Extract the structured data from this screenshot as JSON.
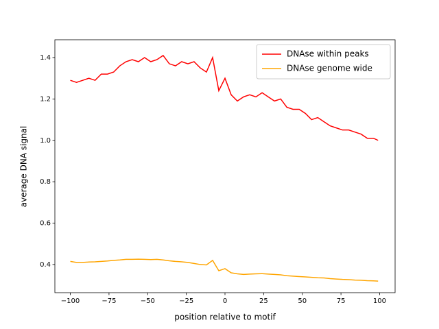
{
  "chart_data": {
    "type": "line",
    "xlabel": "position relative to motif",
    "ylabel": "average DNA signal",
    "x": [
      -100,
      -96,
      -92,
      -88,
      -84,
      -80,
      -76,
      -72,
      -68,
      -64,
      -60,
      -56,
      -52,
      -48,
      -44,
      -40,
      -36,
      -32,
      -28,
      -24,
      -20,
      -16,
      -12,
      -8,
      -4,
      0,
      4,
      8,
      12,
      16,
      20,
      24,
      28,
      32,
      36,
      40,
      44,
      48,
      52,
      56,
      60,
      64,
      68,
      72,
      76,
      80,
      84,
      88,
      92,
      96,
      99
    ],
    "series": [
      {
        "name": "DNAse within peaks",
        "color": "#ff0000",
        "values": [
          1.29,
          1.28,
          1.29,
          1.3,
          1.29,
          1.32,
          1.32,
          1.33,
          1.36,
          1.38,
          1.39,
          1.38,
          1.4,
          1.38,
          1.39,
          1.41,
          1.37,
          1.36,
          1.38,
          1.37,
          1.38,
          1.35,
          1.33,
          1.4,
          1.24,
          1.3,
          1.22,
          1.19,
          1.21,
          1.22,
          1.21,
          1.23,
          1.21,
          1.19,
          1.2,
          1.16,
          1.15,
          1.15,
          1.13,
          1.1,
          1.11,
          1.09,
          1.07,
          1.06,
          1.05,
          1.05,
          1.04,
          1.03,
          1.01,
          1.01,
          1.0
        ]
      },
      {
        "name": "DNAse genome wide",
        "color": "#ffa500",
        "values": [
          0.415,
          0.41,
          0.41,
          0.412,
          0.413,
          0.415,
          0.417,
          0.42,
          0.422,
          0.425,
          0.425,
          0.426,
          0.425,
          0.424,
          0.425,
          0.422,
          0.418,
          0.415,
          0.413,
          0.41,
          0.405,
          0.4,
          0.398,
          0.42,
          0.37,
          0.38,
          0.36,
          0.355,
          0.352,
          0.354,
          0.355,
          0.356,
          0.354,
          0.352,
          0.35,
          0.346,
          0.344,
          0.342,
          0.34,
          0.338,
          0.336,
          0.335,
          0.332,
          0.33,
          0.328,
          0.327,
          0.325,
          0.324,
          0.322,
          0.321,
          0.32
        ]
      }
    ],
    "xlim": [
      -110,
      110
    ],
    "ylim": [
      0.264,
      1.486
    ],
    "xticks": [
      {
        "value": -100,
        "label": "−100"
      },
      {
        "value": -75,
        "label": "−75"
      },
      {
        "value": -50,
        "label": "−50"
      },
      {
        "value": -25,
        "label": "−25"
      },
      0,
      25,
      50,
      75,
      100
    ],
    "yticks": [
      {
        "value": 0.4,
        "label": "0.4"
      },
      {
        "value": 0.6,
        "label": "0.6"
      },
      {
        "value": 0.8,
        "label": "0.8"
      },
      {
        "value": 1.0,
        "label": "1.0"
      },
      {
        "value": 1.2,
        "label": "1.2"
      },
      {
        "value": 1.4,
        "label": "1.4"
      }
    ],
    "legend": "upper right"
  }
}
